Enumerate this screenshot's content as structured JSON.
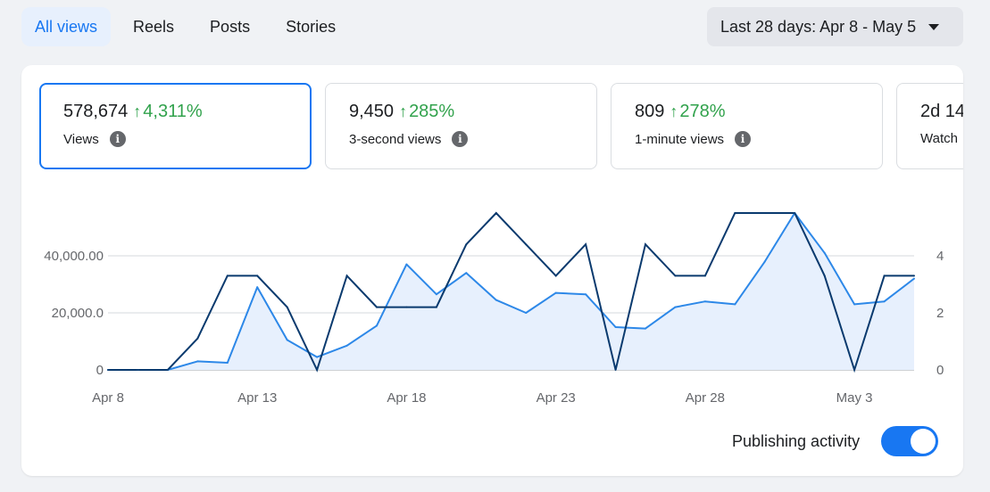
{
  "tabs": [
    {
      "label": "All views",
      "active": true
    },
    {
      "label": "Reels",
      "active": false
    },
    {
      "label": "Posts",
      "active": false
    },
    {
      "label": "Stories",
      "active": false
    }
  ],
  "date_range": {
    "label": "Last 28 days: Apr 8 - May 5"
  },
  "metrics": [
    {
      "value": "578,674",
      "delta": "4,311%",
      "label": "Views",
      "selected": true
    },
    {
      "value": "9,450",
      "delta": "285%",
      "label": "3-second views",
      "selected": false
    },
    {
      "value": "809",
      "delta": "278%",
      "label": "1-minute views",
      "selected": false
    },
    {
      "value": "2d 14",
      "delta": "",
      "label": "Watch",
      "selected": false
    }
  ],
  "publishing": {
    "label": "Publishing activity",
    "enabled": true
  },
  "colors": {
    "accent": "#1877f2",
    "positive": "#31a24c",
    "views_line": "#2d88e8",
    "publishing_line": "#0a3a6e",
    "area_fill": "#e7f0fd"
  },
  "chart_data": {
    "type": "line",
    "x": [
      "Apr 8",
      "Apr 9",
      "Apr 10",
      "Apr 11",
      "Apr 12",
      "Apr 13",
      "Apr 14",
      "Apr 15",
      "Apr 16",
      "Apr 17",
      "Apr 18",
      "Apr 19",
      "Apr 20",
      "Apr 21",
      "Apr 22",
      "Apr 23",
      "Apr 24",
      "Apr 25",
      "Apr 26",
      "Apr 27",
      "Apr 28",
      "Apr 29",
      "Apr 30",
      "May 1",
      "May 2",
      "May 3",
      "May 4",
      "May 5"
    ],
    "x_tick_labels": [
      "Apr 8",
      "Apr 13",
      "Apr 18",
      "Apr 23",
      "Apr 28",
      "May 3"
    ],
    "y_left": {
      "ticks": [
        "0",
        "20,000.0",
        "40,000.00"
      ],
      "tick_values": [
        0,
        20000,
        40000
      ],
      "range": [
        0,
        56000
      ]
    },
    "y_right": {
      "ticks": [
        "0",
        "2",
        "4"
      ],
      "tick_values": [
        0,
        2,
        4
      ],
      "range": [
        0,
        5.6
      ]
    },
    "grid": true,
    "series": [
      {
        "axis": "left",
        "area": true,
        "values": [
          0,
          0,
          0,
          3000,
          2500,
          29000,
          10500,
          4500,
          8500,
          15500,
          37000,
          26500,
          34000,
          24500,
          20000,
          27000,
          26500,
          15000,
          14500,
          22000,
          24000,
          23000,
          38000,
          55000,
          41000,
          23000,
          24000,
          32000
        ]
      },
      {
        "axis": "right",
        "values": [
          0,
          0,
          0,
          1.1,
          3.3,
          3.3,
          2.2,
          0,
          3.3,
          2.2,
          2.2,
          2.2,
          4.4,
          5.5,
          4.4,
          3.3,
          4.4,
          0,
          4.4,
          3.3,
          3.3,
          5.5,
          5.5,
          5.5,
          3.3,
          0,
          3.3,
          3.3
        ]
      }
    ]
  }
}
